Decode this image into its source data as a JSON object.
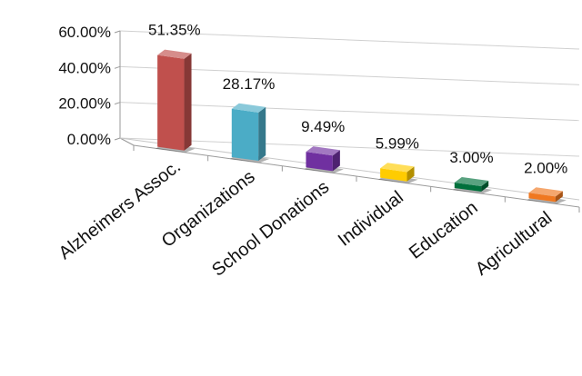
{
  "chart_data": {
    "type": "bar",
    "categories": [
      "Alzheimers Assoc.",
      "Organizations",
      "School Donations",
      "Individual",
      "Education",
      "Agricultural"
    ],
    "values": [
      51.35,
      28.17,
      9.49,
      5.99,
      3.0,
      2.0
    ],
    "data_labels": [
      "51.35%",
      "28.17%",
      "9.49%",
      "5.99%",
      "3.00%",
      "2.00%"
    ],
    "y_tick_labels": [
      "0.00%",
      "20.00%",
      "40.00%",
      "60.00%"
    ],
    "y_ticks": [
      0,
      20,
      40,
      60
    ],
    "ylim": [
      0,
      60
    ],
    "grid": true,
    "three_d": true,
    "colors": [
      "#c0504d",
      "#4bacc6",
      "#7030a0",
      "#ffcc00",
      "#00703c",
      "#f07820"
    ]
  }
}
